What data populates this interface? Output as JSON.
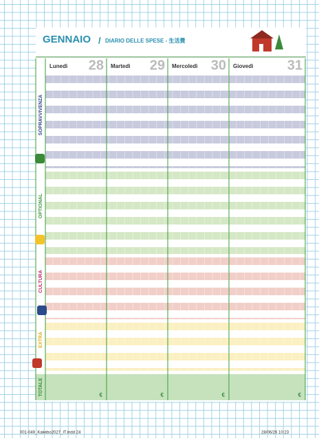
{
  "header": {
    "month": "GENNAIO",
    "separator": "/",
    "subtitle": "DIARIO DELLE SPESE - 生活費"
  },
  "days": [
    {
      "name": "Lunedì",
      "date": "28"
    },
    {
      "name": "Martedì",
      "date": "29"
    },
    {
      "name": "Mercoledì",
      "date": "30"
    },
    {
      "name": "Giovedì",
      "date": "31"
    }
  ],
  "sections": [
    "SOPRAVVIVENZA",
    "OPTIONAL",
    "CULTURA",
    "EXTRA"
  ],
  "total": {
    "label": "TOTALE",
    "cells": [
      "€",
      "€",
      "€",
      "€"
    ]
  },
  "footer": {
    "file": "001-049_Kakebo2027_IT.indd 24",
    "timestamp": "28/06/26 10:23"
  }
}
